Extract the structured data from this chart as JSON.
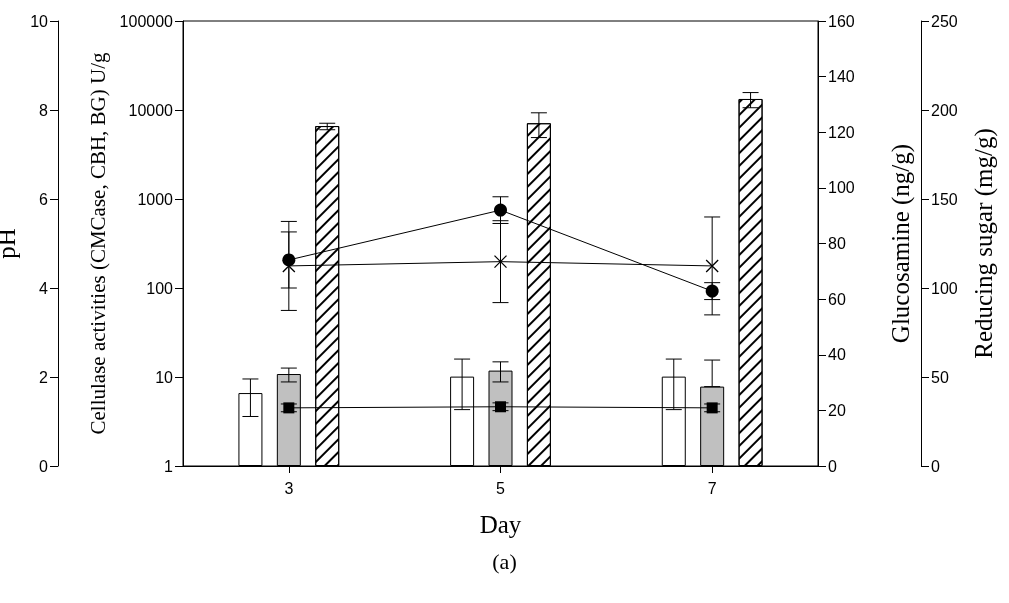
{
  "chart_data": [
    {
      "type": "bar",
      "xlabel": "Day",
      "ylabel": "pH",
      "y2label": "Cellulase activities (CMCase, CBH, BG) U/g",
      "y3label": "Glucosamine (ng/g)",
      "categories": [
        "3",
        "5",
        "7"
      ],
      "ylim": [
        0,
        10
      ],
      "yticks": [
        0,
        2,
        4,
        6,
        8,
        10
      ],
      "y2lim": [
        1,
        100000
      ],
      "y2ticks": [
        1,
        10,
        100,
        1000,
        10000,
        100000
      ],
      "log": "y2",
      "y3lim": [
        0,
        160
      ],
      "y3ticks": [
        0,
        20,
        40,
        60,
        80,
        100,
        120,
        140,
        160
      ],
      "grid": false,
      "series": [
        {
          "axis": "y2",
          "color": "#ffffff",
          "values": [
            6.6,
            10.1,
            10.1
          ],
          "errors": [
            [
              3.6,
              9.5
            ],
            [
              4.3,
              15.9
            ],
            [
              4.3,
              15.9
            ]
          ]
        },
        {
          "axis": "y2",
          "color": "#c0c0c0",
          "values": [
            10.8,
            11.8,
            7.8
          ],
          "errors": [
            [
              8.8,
              12.6
            ],
            [
              8.8,
              14.8
            ],
            [
              7.8,
              15.5
            ]
          ]
        },
        {
          "axis": "y2",
          "color": "#ffffff",
          "values": [
            6600,
            7100,
            13300
          ],
          "errors": [
            [
              6000,
              7100
            ],
            [
              4900,
              9300
            ],
            [
              10600,
              15700
            ]
          ]
        },
        {
          "type": "line",
          "color": "#000000",
          "marker": "circle",
          "line_style": "solid",
          "values": [
            4.63,
            5.75,
            3.93
          ],
          "errors": [
            0.63,
            0.3,
            0.19
          ]
        },
        {
          "type": "line",
          "axis": "y3",
          "color": "#000000",
          "marker": "square",
          "line_style": "solid",
          "values": [
            20.9,
            21.3,
            20.9
          ],
          "errors": [
            1.4,
            1.4,
            1.4
          ]
        }
      ],
      "annotations": [
        "(a)"
      ]
    },
    {
      "type": "line",
      "ylabel": "Reducing sugar (mg/g)",
      "categories": [
        "3",
        "5",
        "7"
      ],
      "tick_labels": "y",
      "ylim": [
        0,
        250
      ],
      "yticks": [
        0,
        50,
        100,
        150,
        200,
        250
      ],
      "grid": false,
      "series": [
        {
          "color": "#000000",
          "marker": "cross",
          "line_style": "solid",
          "values": [
            112.4,
            114.8,
            112.4
          ],
          "errors": [
            25,
            23,
            27.5
          ]
        }
      ]
    }
  ]
}
